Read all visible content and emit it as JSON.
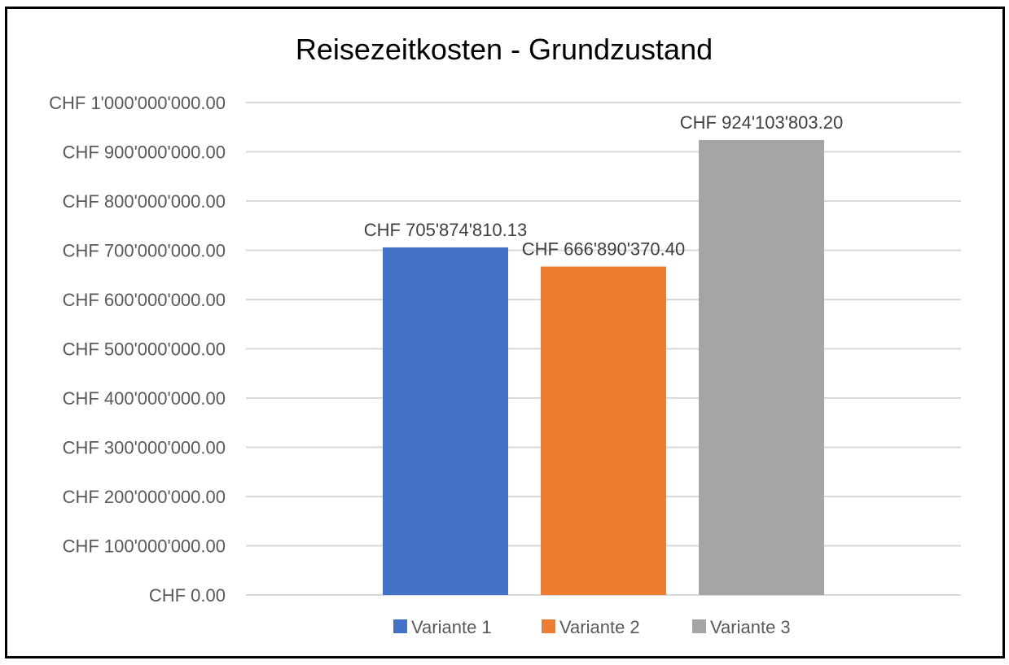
{
  "chart_data": {
    "type": "bar",
    "title": "Reisezeitkosten - Grundzustand",
    "xlabel": "",
    "ylabel": "",
    "ylim": [
      0,
      1000000000
    ],
    "yticks": [
      {
        "value": 0,
        "label": "CHF 0.00"
      },
      {
        "value": 100000000,
        "label": "CHF 100'000'000.00"
      },
      {
        "value": 200000000,
        "label": "CHF 200'000'000.00"
      },
      {
        "value": 300000000,
        "label": "CHF 300'000'000.00"
      },
      {
        "value": 400000000,
        "label": "CHF 400'000'000.00"
      },
      {
        "value": 500000000,
        "label": "CHF 500'000'000.00"
      },
      {
        "value": 600000000,
        "label": "CHF 600'000'000.00"
      },
      {
        "value": 700000000,
        "label": "CHF 700'000'000.00"
      },
      {
        "value": 800000000,
        "label": "CHF 800'000'000.00"
      },
      {
        "value": 900000000,
        "label": "CHF 900'000'000.00"
      },
      {
        "value": 1000000000,
        "label": "CHF 1'000'000'000.00"
      }
    ],
    "grid": true,
    "legend_position": "bottom",
    "series": [
      {
        "name": "Variante 1",
        "value": 705874810.13,
        "data_label": "CHF 705'874'810.13",
        "color": "#4472C4"
      },
      {
        "name": "Variante 2",
        "value": 666890370.4,
        "data_label": "CHF 666'890'370.40",
        "color": "#ED7D31"
      },
      {
        "name": "Variante 3",
        "value": 924103803.2,
        "data_label": "CHF 924'103'803.20",
        "color": "#A5A5A5"
      }
    ]
  }
}
